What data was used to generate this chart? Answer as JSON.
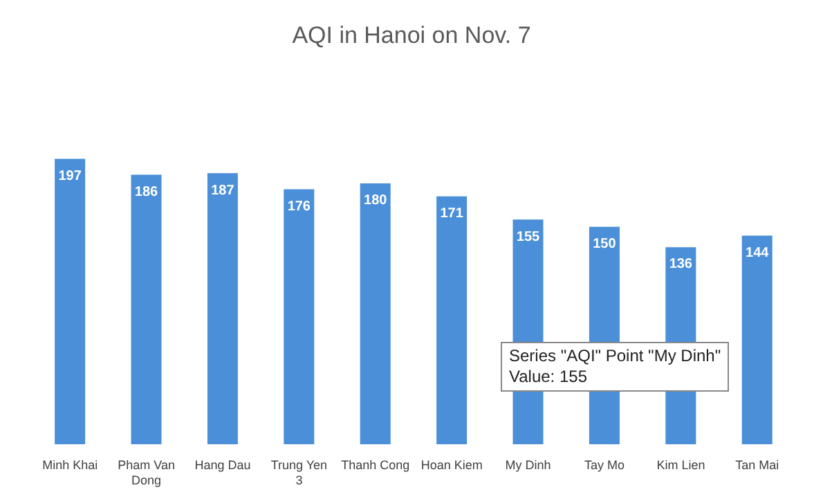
{
  "chart_data": {
    "type": "bar",
    "title": "AQI in Hanoi on Nov. 7",
    "categories": [
      "Minh Khai",
      "Pham Van Dong",
      "Hang Dau",
      "Trung Yen 3",
      "Thanh Cong",
      "Hoan Kiem",
      "My Dinh",
      "Tay Mo",
      "Kim Lien",
      "Tan Mai"
    ],
    "values": [
      197,
      186,
      187,
      176,
      180,
      171,
      155,
      150,
      136,
      144
    ],
    "color": "#4a8fd8",
    "data_labels": true,
    "annotations": [
      "Series \"AQI\" Point \"My Dinh\"",
      "Value: 155"
    ]
  }
}
